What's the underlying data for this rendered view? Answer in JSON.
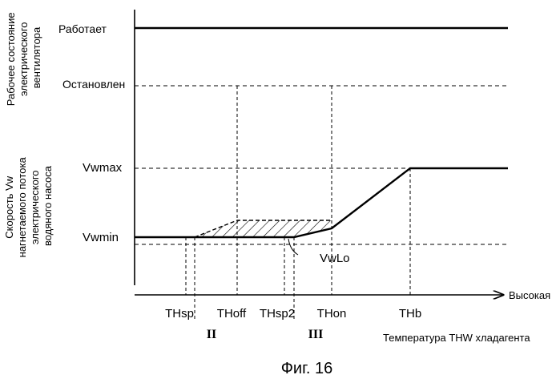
{
  "top_panel": {
    "ylabel_lines": [
      "Рабочее состояние",
      "электрического",
      "вентилятора"
    ],
    "state_on": "Работает",
    "state_off": "Остановлен"
  },
  "bottom_panel": {
    "ylabel_lines": [
      "Скорость Vw",
      "нагнетаемого потока",
      "электрического",
      "водяного насоса"
    ],
    "vwmax": "Vwmax",
    "vwmin": "Vwmin",
    "vwlo": "VwLo"
  },
  "x_axis": {
    "arrow_label": "Высокая",
    "title": "Температура THW хладагента",
    "ticks": [
      "THsp",
      "THoff",
      "THsp2",
      "THon",
      "THb"
    ],
    "roman_marks": [
      "II",
      "III"
    ]
  },
  "caption": "Фиг. 16"
}
